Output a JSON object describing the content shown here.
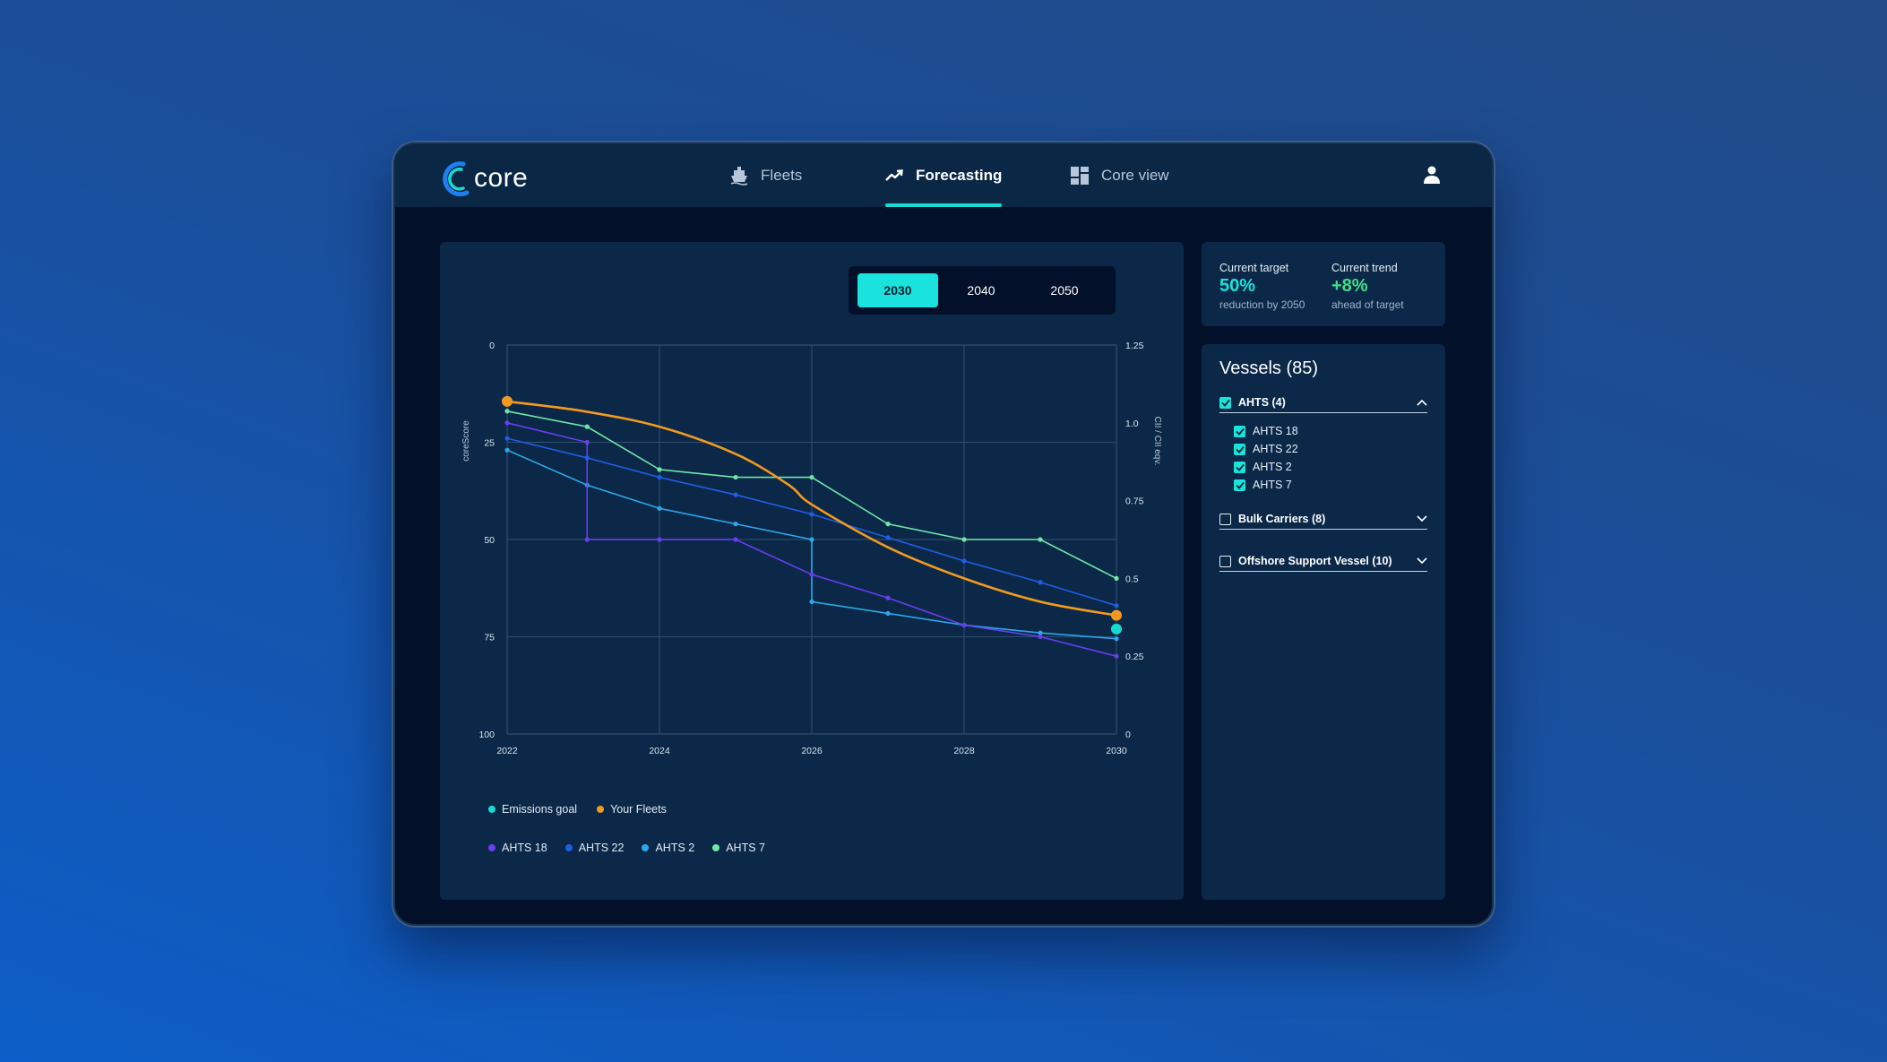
{
  "app": {
    "logo_text": "core"
  },
  "nav": {
    "fleets": "Fleets",
    "forecasting": "Forecasting",
    "core_view": "Core view"
  },
  "toggle": {
    "options": [
      "2030",
      "2040",
      "2050"
    ],
    "selected": "2030"
  },
  "stats": {
    "target": {
      "label": "Current target",
      "value": "50%",
      "sub": "reduction by 2050",
      "color": "#19e3dc"
    },
    "trend": {
      "label": "Current trend",
      "value": "+8%",
      "sub": "ahead of target",
      "color": "#3ee08a"
    }
  },
  "vessels": {
    "title": "Vessels (85)",
    "groups": [
      {
        "label": "AHTS (4)",
        "checked": true,
        "expanded": true,
        "items": [
          "AHTS 18",
          "AHTS 22",
          "AHTS 2",
          "AHTS 7"
        ]
      },
      {
        "label": "Bulk Carriers (8)",
        "checked": false,
        "expanded": false
      },
      {
        "label": "Offshore Support Vessel (10)",
        "checked": false,
        "expanded": false
      }
    ]
  },
  "chart_data": {
    "type": "line",
    "xlabel": "",
    "ylabel": "coreScore",
    "ylabel_right": "CII / CII eqv.",
    "x_ticks": [
      "2022",
      "2024",
      "2026",
      "2028",
      "2030"
    ],
    "xlim": [
      2022,
      2030
    ],
    "y_ticks": [
      "0",
      "25",
      "50",
      "75",
      "100"
    ],
    "ylim": [
      0,
      100
    ],
    "y_inverted": true,
    "y2_ticks": [
      "1.25",
      "1.0",
      "0.75",
      "0.5",
      "0.25",
      "0"
    ],
    "y2lim": [
      0,
      1.25
    ],
    "grid": true,
    "legend": [
      {
        "name": "Emissions goal",
        "color": "#19d9d2"
      },
      {
        "name": "Your Fleets",
        "color": "#f29a1f"
      }
    ],
    "legend_vessels": [
      {
        "name": "AHTS 18",
        "color": "#6a3df0"
      },
      {
        "name": "AHTS 22",
        "color": "#1f5fe6"
      },
      {
        "name": "AHTS 2",
        "color": "#2aa8ea"
      },
      {
        "name": "AHTS 7",
        "color": "#6fe7a8"
      }
    ],
    "series": [
      {
        "name": "Your Fleets",
        "color": "#f29a1f",
        "smooth": true,
        "points": [
          [
            2022,
            14.5
          ],
          [
            2023,
            17
          ],
          [
            2024,
            21
          ],
          [
            2025,
            28
          ],
          [
            2025.7,
            36
          ],
          [
            2026,
            41
          ],
          [
            2027,
            52
          ],
          [
            2028,
            60
          ],
          [
            2029,
            66
          ],
          [
            2030,
            69.5
          ]
        ]
      },
      {
        "name": "Emissions goal",
        "color": "#19d9d2",
        "points": [
          [
            2030,
            73
          ]
        ]
      },
      {
        "name": "AHTS 18",
        "color": "#6a3df0",
        "points": [
          [
            2022,
            20
          ],
          [
            2023.05,
            25
          ],
          [
            2023.05,
            50
          ],
          [
            2024,
            50
          ],
          [
            2025,
            50
          ],
          [
            2026,
            59
          ],
          [
            2027,
            65
          ],
          [
            2028,
            72
          ],
          [
            2029,
            75
          ],
          [
            2030,
            80
          ]
        ]
      },
      {
        "name": "AHTS 22",
        "color": "#1f5fe6",
        "points": [
          [
            2022,
            24
          ],
          [
            2023.05,
            29
          ],
          [
            2024,
            34
          ],
          [
            2025,
            38.5
          ],
          [
            2026,
            43.5
          ],
          [
            2027,
            49.5
          ],
          [
            2028,
            55.5
          ],
          [
            2029,
            61
          ],
          [
            2030,
            67
          ]
        ]
      },
      {
        "name": "AHTS 2",
        "color": "#2aa8ea",
        "points": [
          [
            2022,
            27
          ],
          [
            2023.05,
            36
          ],
          [
            2024,
            42
          ],
          [
            2025,
            46
          ],
          [
            2026,
            50
          ],
          [
            2026,
            66
          ],
          [
            2027,
            69
          ],
          [
            2028,
            72
          ],
          [
            2029,
            74
          ],
          [
            2030,
            75.5
          ]
        ]
      },
      {
        "name": "AHTS 7",
        "color": "#6fe7a8",
        "points": [
          [
            2022,
            17
          ],
          [
            2023.05,
            21
          ],
          [
            2024,
            32
          ],
          [
            2025,
            34
          ],
          [
            2026,
            34
          ],
          [
            2027,
            46
          ],
          [
            2028,
            50
          ],
          [
            2029,
            50
          ],
          [
            2030,
            60
          ]
        ]
      }
    ]
  }
}
